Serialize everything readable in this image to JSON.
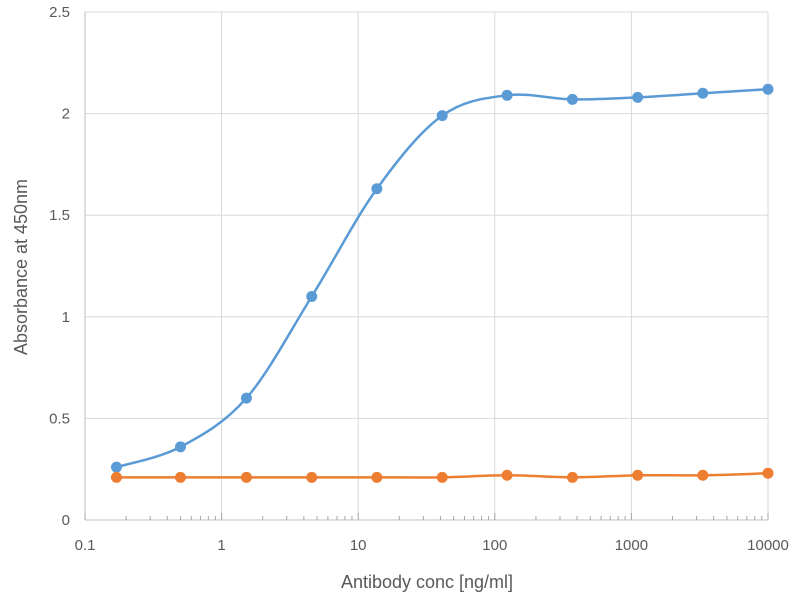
{
  "chart_data": {
    "type": "line",
    "title": "",
    "xlabel": "Antibody conc [ng/ml]",
    "ylabel": "Absorbance at 450nm",
    "x_scale": "log",
    "xlim": [
      0.1,
      10000
    ],
    "ylim": [
      0,
      2.5
    ],
    "x_ticks": [
      0.1,
      1,
      10,
      100,
      1000,
      10000
    ],
    "x_tick_labels": [
      "0.1",
      "1",
      "10",
      "100",
      "1000",
      "10000"
    ],
    "y_ticks": [
      0,
      0.5,
      1,
      1.5,
      2,
      2.5
    ],
    "y_tick_labels": [
      "0",
      "0.5",
      "1",
      "1.5",
      "2",
      "2.5"
    ],
    "grid": true,
    "legend": "none",
    "x": [
      0.17,
      0.5,
      1.52,
      4.57,
      13.7,
      41.2,
      123,
      370,
      1111,
      3333,
      10000
    ],
    "series": [
      {
        "color": "#5B9BD5",
        "values": [
          0.26,
          0.36,
          0.6,
          1.1,
          1.63,
          1.99,
          2.09,
          2.07,
          2.08,
          2.1,
          2.12
        ]
      },
      {
        "color": "#ED7D31",
        "values": [
          0.21,
          0.21,
          0.21,
          0.21,
          0.21,
          0.21,
          0.22,
          0.21,
          0.22,
          0.22,
          0.23
        ]
      }
    ]
  }
}
